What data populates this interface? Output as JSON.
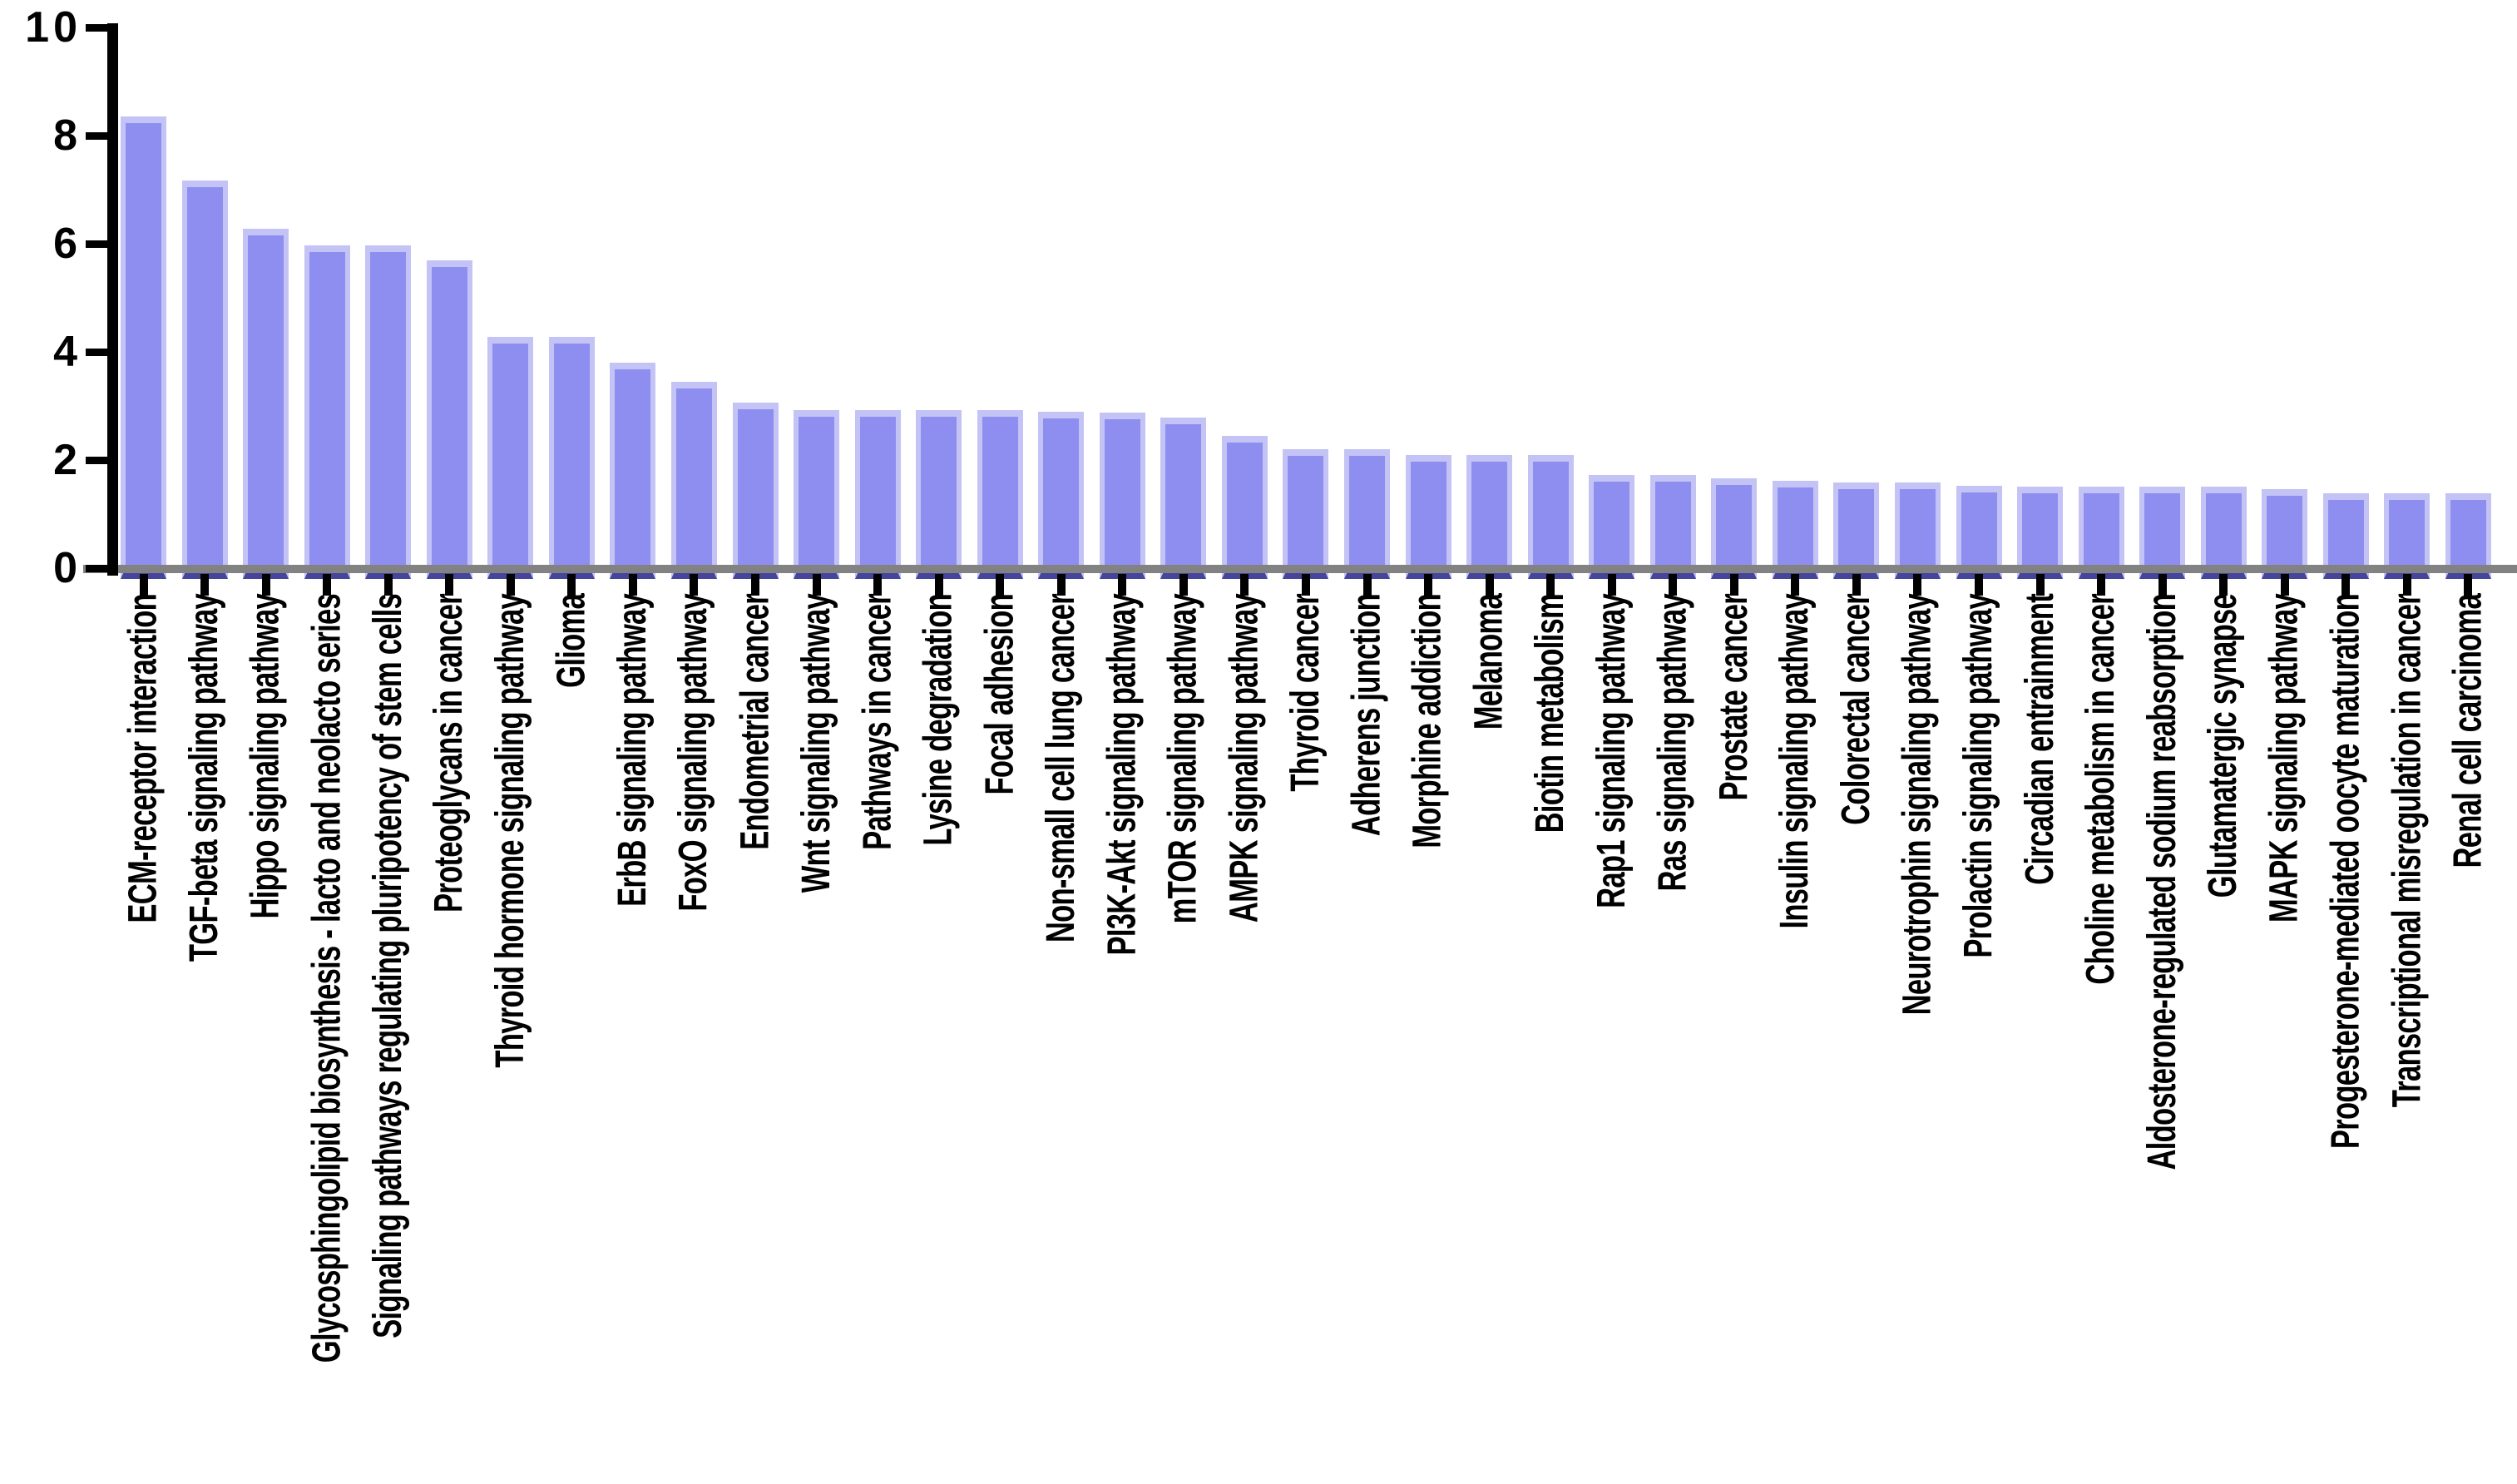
{
  "chart_data": {
    "type": "bar",
    "title": "",
    "xlabel": "",
    "ylabel": "",
    "ylim": [
      0,
      10
    ],
    "yticks": [
      0,
      2,
      4,
      6,
      8,
      10
    ],
    "ytick_labels": [
      "0",
      "2",
      "4",
      "6",
      "8",
      "10"
    ],
    "grid": false,
    "legend_position": "none",
    "bar_fill_color": "#8e8ef0",
    "bar_edge_color": "#c3c3f5",
    "bar_base_color": "#45459c",
    "axis_color": "#000000",
    "baseline_color": "#828282",
    "categories": [
      "ECM-receptor interaction",
      "TGF-beta signaling pathway",
      "Hippo signaling pathway",
      "Glycosphingolipid biosynthesis - lacto and neolacto series",
      "Signaling pathways regulating pluripotency of stem cells",
      "Proteoglycans in cancer",
      "Thyroid hormone signaling pathway",
      "Glioma",
      "ErbB signaling pathway",
      "FoxO signaling pathway",
      "Endometrial cancer",
      "Wnt signaling pathway",
      "Pathways in cancer",
      "Lysine degradation",
      "Focal adhesion",
      "Non-small cell lung cancer",
      "PI3K-Akt signaling pathway",
      "mTOR signaling pathway",
      "AMPK signaling pathway",
      "Thyroid cancer",
      "Adherens junction",
      "Morphine addiction",
      "Melanoma",
      "Biotin metabolism",
      "Rap1 signaling pathway",
      "Ras signaling pathway",
      "Prostate cancer",
      "Insulin signaling pathway",
      "Colorectal cancer",
      "Neurotrophin signaling pathway",
      "Prolactin signaling pathway",
      "Circadian entrainment",
      "Choline metabolism in cancer",
      "Aldosterone-regulated sodium reabsorption",
      "Glutamatergic synapse",
      "MAPK signaling pathway",
      "Progesterone-mediated oocyte maturation",
      "Transcriptional misregulation in cancer",
      "Renal cell carcinoma"
    ],
    "values": [
      8.35,
      7.17,
      6.28,
      5.97,
      5.97,
      5.7,
      4.27,
      4.27,
      3.8,
      3.44,
      3.06,
      2.92,
      2.92,
      2.92,
      2.92,
      2.9,
      2.88,
      2.78,
      2.45,
      2.2,
      2.2,
      2.1,
      2.1,
      2.1,
      1.73,
      1.73,
      1.66,
      1.62,
      1.58,
      1.58,
      1.53,
      1.51,
      1.51,
      1.51,
      1.51,
      1.46,
      1.38,
      1.38,
      1.38
    ]
  }
}
